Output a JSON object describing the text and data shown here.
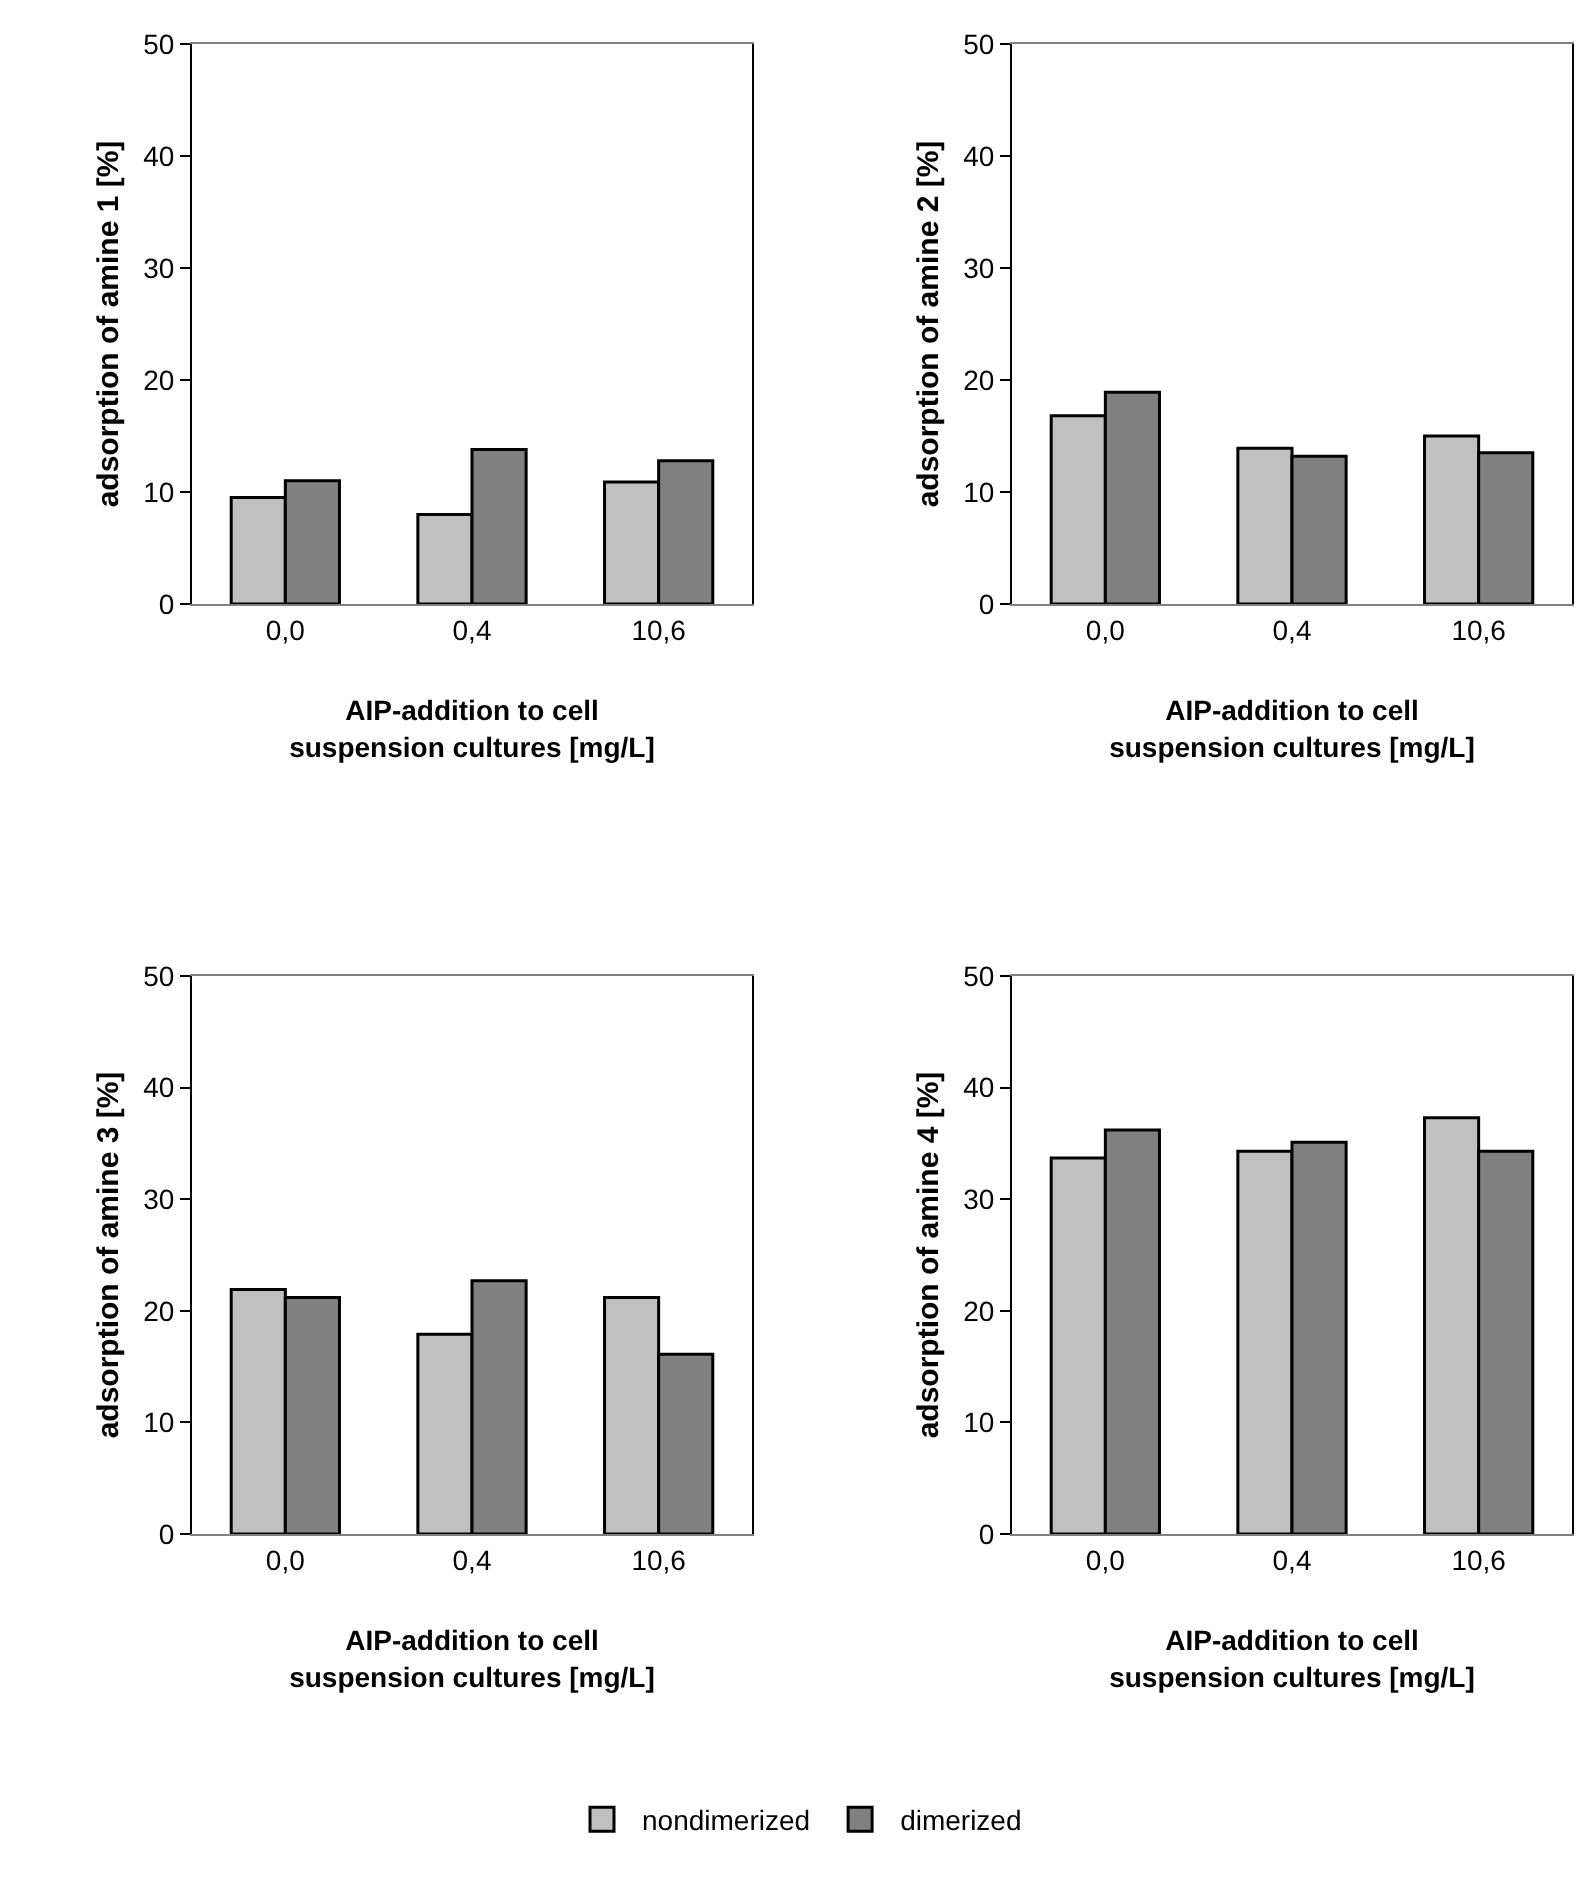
{
  "chart_data": [
    {
      "type": "bar",
      "categories": [
        "0,0",
        "0,4",
        "10,6"
      ],
      "xlabel": "AIP-addition to cell suspension cultures [mg/L]",
      "ylabel": "adsorption of amine 1 [%]",
      "ylim": [
        0,
        50
      ],
      "yticks": [
        0,
        10,
        20,
        30,
        40,
        50
      ],
      "grid": false,
      "legend": "bottom",
      "series": [
        {
          "name": "nondimerized",
          "color": "#c0c0c0",
          "values": [
            9.5,
            8.0,
            10.9
          ]
        },
        {
          "name": "dimerized",
          "color": "#808080",
          "values": [
            11.0,
            13.8,
            12.8
          ]
        }
      ]
    },
    {
      "type": "bar",
      "categories": [
        "0,0",
        "0,4",
        "10,6"
      ],
      "xlabel": "AIP-addition to cell suspension cultures [mg/L]",
      "ylabel": "adsorption of amine 2 [%]",
      "ylim": [
        0,
        50
      ],
      "yticks": [
        0,
        10,
        20,
        30,
        40,
        50
      ],
      "grid": false,
      "series": [
        {
          "color": "#c0c0c0",
          "values": [
            16.8,
            13.9,
            15.0
          ]
        },
        {
          "color": "#808080",
          "values": [
            18.9,
            13.2,
            13.5
          ]
        }
      ]
    },
    {
      "type": "bar",
      "categories": [
        "0,0",
        "0,4",
        "10,6"
      ],
      "xlabel": "AIP-addition to cell suspension cultures [mg/L]",
      "ylabel": "adsorption of amine 3 [%]",
      "ylim": [
        0,
        50
      ],
      "yticks": [
        0,
        10,
        20,
        30,
        40,
        50
      ],
      "grid": false,
      "series": [
        {
          "color": "#c0c0c0",
          "values": [
            21.9,
            17.9,
            21.2
          ]
        },
        {
          "color": "#808080",
          "values": [
            21.2,
            22.7,
            16.1
          ]
        }
      ]
    },
    {
      "type": "bar",
      "categories": [
        "0,0",
        "0,4",
        "10,6"
      ],
      "xlabel": "AIP-addition to cell suspension cultures [mg/L]",
      "ylabel": "adsorption of amine 4 [%]",
      "ylim": [
        0,
        50
      ],
      "yticks": [
        0,
        10,
        20,
        30,
        40,
        50
      ],
      "grid": false,
      "series": [
        {
          "color": "#c0c0c0",
          "values": [
            33.7,
            34.3,
            37.3
          ]
        },
        {
          "color": "#808080",
          "values": [
            36.2,
            35.1,
            34.3
          ]
        }
      ]
    }
  ]
}
